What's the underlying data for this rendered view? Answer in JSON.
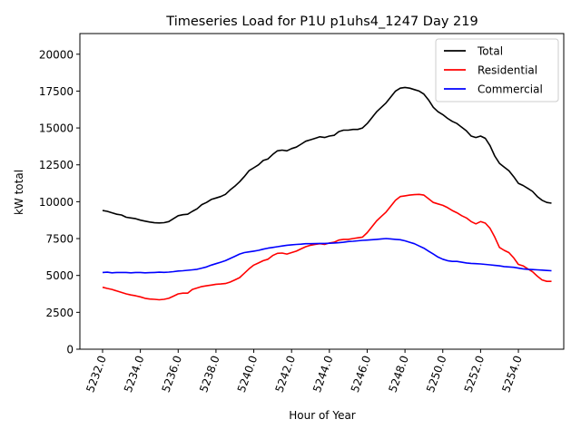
{
  "chart_data": {
    "type": "line",
    "title": "Timeseries Load for P1U p1uhs4_1247  Day 219",
    "xlabel": "Hour of Year",
    "ylabel": "kW total",
    "xlim": [
      5230.8,
      5256.4
    ],
    "ylim": [
      0,
      21400
    ],
    "xticks": [
      5232,
      5234,
      5236,
      5238,
      5240,
      5242,
      5244,
      5246,
      5248,
      5250,
      5252,
      5254
    ],
    "xtick_labels": [
      "5232.0",
      "5234.0",
      "5236.0",
      "5238.0",
      "5240.0",
      "5242.0",
      "5244.0",
      "5246.0",
      "5248.0",
      "5250.0",
      "5252.0",
      "5254.0"
    ],
    "yticks": [
      0,
      2500,
      5000,
      7500,
      10000,
      12500,
      15000,
      17500,
      20000
    ],
    "ytick_labels": [
      "0",
      "2500",
      "5000",
      "7500",
      "10000",
      "12500",
      "15000",
      "17500",
      "20000"
    ],
    "legend_position": "top-right",
    "grid": false,
    "x": [
      5232.0,
      5232.25,
      5232.5,
      5232.75,
      5233.0,
      5233.25,
      5233.5,
      5233.75,
      5234.0,
      5234.25,
      5234.5,
      5234.75,
      5235.0,
      5235.25,
      5235.5,
      5235.75,
      5236.0,
      5236.25,
      5236.5,
      5236.75,
      5237.0,
      5237.25,
      5237.5,
      5237.75,
      5238.0,
      5238.25,
      5238.5,
      5238.75,
      5239.0,
      5239.25,
      5239.5,
      5239.75,
      5240.0,
      5240.25,
      5240.5,
      5240.75,
      5241.0,
      5241.25,
      5241.5,
      5241.75,
      5242.0,
      5242.25,
      5242.5,
      5242.75,
      5243.0,
      5243.25,
      5243.5,
      5243.75,
      5244.0,
      5244.25,
      5244.5,
      5244.75,
      5245.0,
      5245.25,
      5245.5,
      5245.75,
      5246.0,
      5246.25,
      5246.5,
      5246.75,
      5247.0,
      5247.25,
      5247.5,
      5247.75,
      5248.0,
      5248.25,
      5248.5,
      5248.75,
      5249.0,
      5249.25,
      5249.5,
      5249.75,
      5250.0,
      5250.25,
      5250.5,
      5250.75,
      5251.0,
      5251.25,
      5251.5,
      5251.75,
      5252.0,
      5252.25,
      5252.5,
      5252.75,
      5253.0,
      5253.25,
      5253.5,
      5253.75,
      5254.0,
      5254.25,
      5254.5,
      5254.75,
      5255.0,
      5255.25,
      5255.5,
      5255.75
    ],
    "series": [
      {
        "name": "Total",
        "color": "#000000",
        "values": [
          9400,
          9350,
          9250,
          9150,
          9100,
          8950,
          8900,
          8850,
          8750,
          8680,
          8620,
          8570,
          8560,
          8580,
          8650,
          8850,
          9050,
          9120,
          9150,
          9350,
          9520,
          9800,
          9950,
          10150,
          10250,
          10350,
          10500,
          10800,
          11050,
          11350,
          11700,
          12100,
          12300,
          12500,
          12800,
          12900,
          13200,
          13450,
          13500,
          13450,
          13600,
          13700,
          13900,
          14100,
          14200,
          14300,
          14400,
          14350,
          14450,
          14500,
          14750,
          14850,
          14850,
          14900,
          14900,
          15000,
          15300,
          15700,
          16100,
          16400,
          16700,
          17100,
          17500,
          17700,
          17750,
          17700,
          17600,
          17500,
          17300,
          16900,
          16400,
          16100,
          15900,
          15650,
          15450,
          15300,
          15050,
          14800,
          14450,
          14350,
          14450,
          14300,
          13800,
          13100,
          12600,
          12350,
          12100,
          11700,
          11250,
          11100,
          10900,
          10700,
          10350,
          10100,
          9950,
          9900
        ]
      },
      {
        "name": "Residential",
        "color": "#ff0000",
        "values": [
          4200,
          4120,
          4050,
          3950,
          3850,
          3750,
          3680,
          3620,
          3550,
          3450,
          3400,
          3380,
          3350,
          3380,
          3450,
          3600,
          3750,
          3800,
          3800,
          4050,
          4150,
          4250,
          4300,
          4350,
          4400,
          4420,
          4450,
          4550,
          4700,
          4850,
          5150,
          5450,
          5700,
          5850,
          6000,
          6100,
          6350,
          6500,
          6520,
          6450,
          6550,
          6650,
          6800,
          6950,
          7050,
          7100,
          7150,
          7100,
          7200,
          7250,
          7400,
          7450,
          7450,
          7500,
          7550,
          7600,
          7900,
          8300,
          8700,
          9000,
          9300,
          9700,
          10100,
          10350,
          10400,
          10450,
          10480,
          10500,
          10450,
          10200,
          9950,
          9850,
          9750,
          9600,
          9400,
          9250,
          9050,
          8900,
          8650,
          8500,
          8650,
          8550,
          8200,
          7600,
          6900,
          6700,
          6550,
          6200,
          5750,
          5650,
          5450,
          5250,
          4950,
          4700,
          4600,
          4600
        ]
      },
      {
        "name": "Commercial",
        "color": "#0000ff",
        "values": [
          5200,
          5220,
          5180,
          5200,
          5200,
          5200,
          5180,
          5200,
          5200,
          5180,
          5190,
          5200,
          5220,
          5210,
          5230,
          5260,
          5300,
          5320,
          5350,
          5380,
          5420,
          5500,
          5580,
          5700,
          5800,
          5900,
          6000,
          6150,
          6300,
          6450,
          6550,
          6600,
          6650,
          6700,
          6780,
          6850,
          6900,
          6950,
          7000,
          7050,
          7080,
          7100,
          7120,
          7150,
          7150,
          7160,
          7170,
          7170,
          7180,
          7200,
          7220,
          7250,
          7300,
          7320,
          7350,
          7380,
          7400,
          7420,
          7450,
          7480,
          7500,
          7480,
          7450,
          7420,
          7350,
          7250,
          7150,
          7000,
          6850,
          6650,
          6450,
          6250,
          6100,
          6000,
          5950,
          5950,
          5900,
          5850,
          5820,
          5800,
          5780,
          5750,
          5720,
          5680,
          5650,
          5600,
          5580,
          5550,
          5500,
          5450,
          5420,
          5400,
          5380,
          5360,
          5340,
          5320
        ]
      }
    ]
  }
}
